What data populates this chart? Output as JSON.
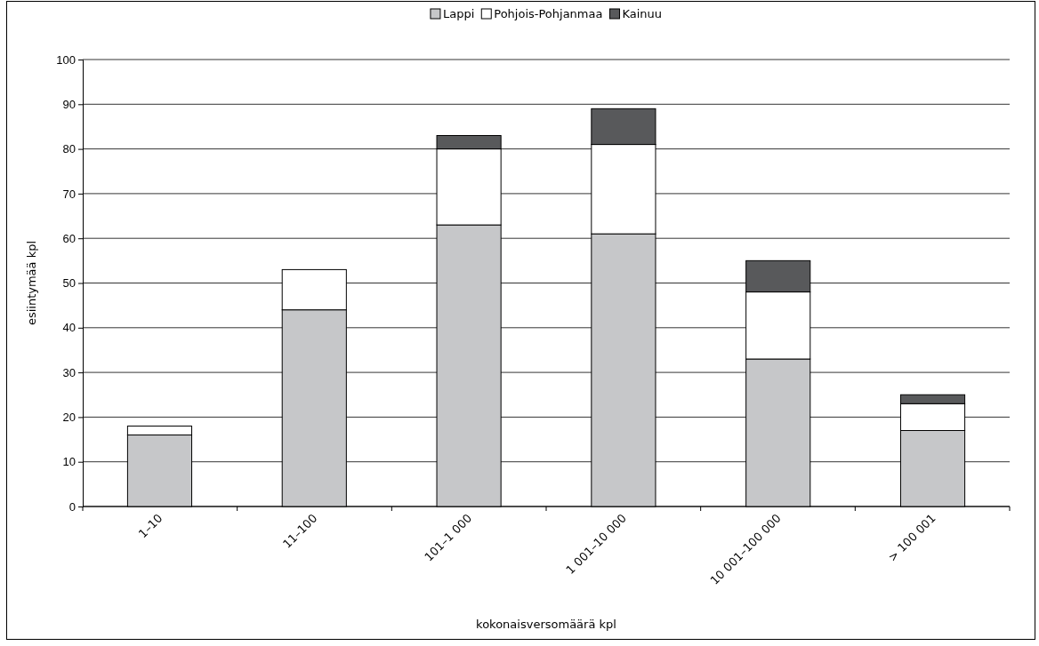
{
  "chart_data": {
    "type": "bar",
    "stacked": true,
    "xlabel": "kokonaisversomäärä kpl",
    "ylabel": "esiintymää kpl",
    "categories": [
      "1–10",
      "11–100",
      "101–1 000",
      "1 001–10 000",
      "10 001–100 000",
      "> 100 001"
    ],
    "series": [
      {
        "name": "Lappi",
        "color": "#c6c7c9",
        "values": [
          16,
          44,
          63,
          61,
          33,
          17
        ]
      },
      {
        "name": "Pohjois-Pohjanmaa",
        "color": "#ffffff",
        "values": [
          2,
          9,
          17,
          20,
          15,
          6
        ]
      },
      {
        "name": "Kainuu",
        "color": "#58595b",
        "values": [
          null,
          null,
          3,
          8,
          7,
          2
        ]
      }
    ],
    "ylim": [
      0,
      100
    ],
    "yticks": [
      0,
      10,
      20,
      30,
      40,
      50,
      60,
      70,
      80,
      90,
      100
    ],
    "grid": "y",
    "legend": "top"
  }
}
